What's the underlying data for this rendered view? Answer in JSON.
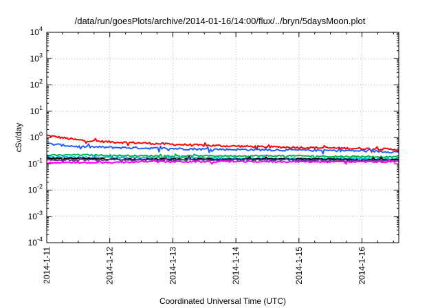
{
  "chart_data": {
    "type": "line",
    "title": "/data/run/goesPlots/archive/2014-01-16/14:00/flux/../bryn/5daysMoon.plot",
    "xlabel": "Coordinated Universal Time (UTC)",
    "ylabel": "cSv/day",
    "y_scale": "log",
    "ylim": [
      0.0001,
      10000
    ],
    "xlim": [
      "2014-01-11T00:00",
      "2014-01-16T14:00"
    ],
    "x_tick_labels": [
      "2014-1-11",
      "2014-1-12",
      "2014-1-13",
      "2014-1-14",
      "2014-1-15",
      "2014-1-16"
    ],
    "y_tick_labels": [
      {
        "base": "10",
        "exp": "-4"
      },
      {
        "base": "10",
        "exp": "-3"
      },
      {
        "base": "10",
        "exp": "-2"
      },
      {
        "base": "10",
        "exp": "-1"
      },
      {
        "base": "10",
        "exp": "0"
      },
      {
        "base": "10",
        "exp": "1"
      },
      {
        "base": "10",
        "exp": "2"
      },
      {
        "base": "10",
        "exp": "3"
      },
      {
        "base": "10",
        "exp": "4"
      }
    ],
    "grid": true,
    "x": [
      "2014-01-11T00:00",
      "2014-01-11T12:00",
      "2014-01-12T00:00",
      "2014-01-12T12:00",
      "2014-01-13T00:00",
      "2014-01-13T12:00",
      "2014-01-14T00:00",
      "2014-01-14T12:00",
      "2014-01-15T00:00",
      "2014-01-15T12:00",
      "2014-01-16T00:00",
      "2014-01-16T14:00"
    ],
    "series": [
      {
        "color": "#ff0000",
        "values": [
          1.2,
          0.8,
          0.68,
          0.62,
          0.55,
          0.5,
          0.47,
          0.44,
          0.42,
          0.4,
          0.38,
          0.35
        ]
      },
      {
        "color": "#1f5fff",
        "values": [
          0.58,
          0.45,
          0.42,
          0.4,
          0.38,
          0.36,
          0.35,
          0.34,
          0.33,
          0.32,
          0.31,
          0.28
        ]
      },
      {
        "color": "#00b050",
        "values": [
          0.21,
          0.22,
          0.21,
          0.2,
          0.2,
          0.2,
          0.2,
          0.2,
          0.2,
          0.19,
          0.19,
          0.18
        ]
      },
      {
        "color": "#00bcd4",
        "values": [
          0.18,
          0.18,
          0.17,
          0.17,
          0.17,
          0.17,
          0.16,
          0.16,
          0.16,
          0.16,
          0.16,
          0.15
        ]
      },
      {
        "color": "#000000",
        "values": [
          0.16,
          0.16,
          0.15,
          0.15,
          0.15,
          0.15,
          0.15,
          0.15,
          0.15,
          0.15,
          0.14,
          0.14
        ]
      },
      {
        "color": "#7030a0",
        "values": [
          0.14,
          0.14,
          0.14,
          0.14,
          0.14,
          0.14,
          0.14,
          0.14,
          0.14,
          0.13,
          0.13,
          0.13
        ]
      },
      {
        "color": "#ff00ff",
        "values": [
          0.11,
          0.11,
          0.11,
          0.12,
          0.12,
          0.12,
          0.12,
          0.12,
          0.12,
          0.12,
          0.12,
          0.12
        ]
      }
    ]
  }
}
